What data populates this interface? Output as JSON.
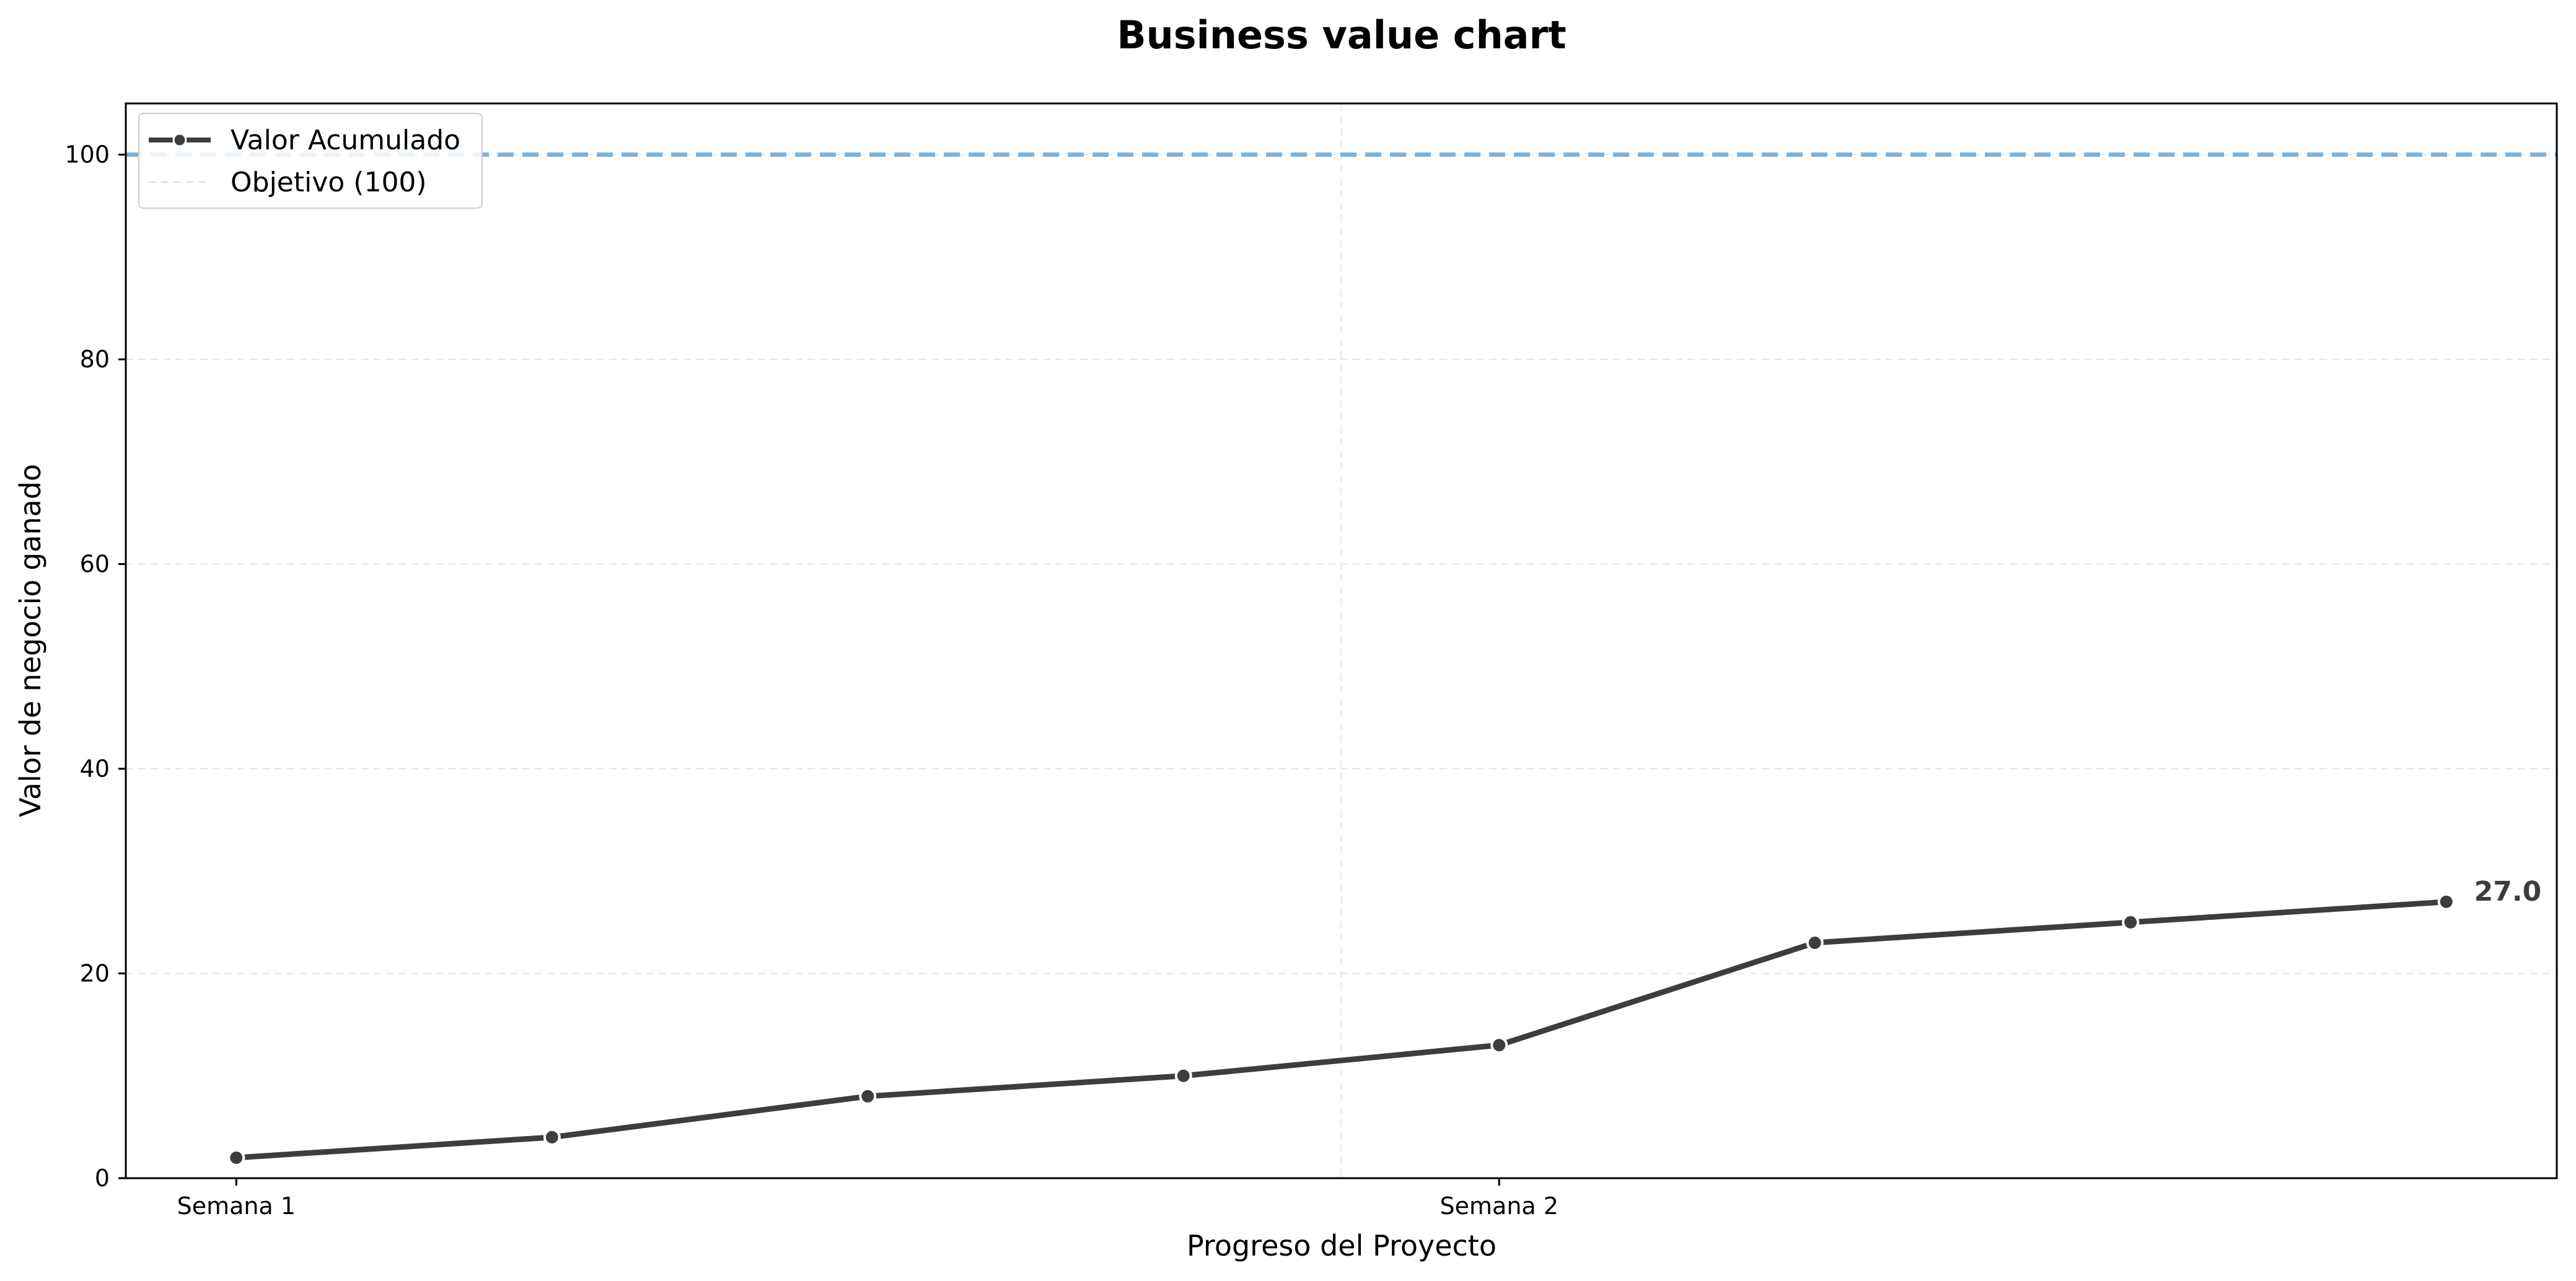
{
  "chart_data": {
    "type": "line",
    "title": "Business value chart",
    "xlabel": "Progreso del Proyecto",
    "ylabel": "Valor de negocio ganado",
    "x": [
      1,
      2,
      3,
      4,
      5,
      6,
      7,
      8
    ],
    "x_tick_labels": [
      {
        "x": 1,
        "label": "Semana 1"
      },
      {
        "x": 5,
        "label": "Semana 2"
      }
    ],
    "week_divider_x": 4.5,
    "series": [
      {
        "name": "Valor Acumulado",
        "values": [
          2,
          4,
          8,
          10,
          13,
          23,
          25,
          27
        ],
        "color": "#3d3d3d"
      }
    ],
    "target": {
      "name": "Objetivo (100)",
      "value": 100,
      "color": "#7fb2d9"
    },
    "end_label": "27.0",
    "ylim": [
      0,
      105
    ],
    "xlim": [
      0.65,
      8.35
    ],
    "y_ticks": [
      0,
      20,
      40,
      60,
      80,
      100
    ],
    "grid": true,
    "legend_position": "top-left"
  }
}
